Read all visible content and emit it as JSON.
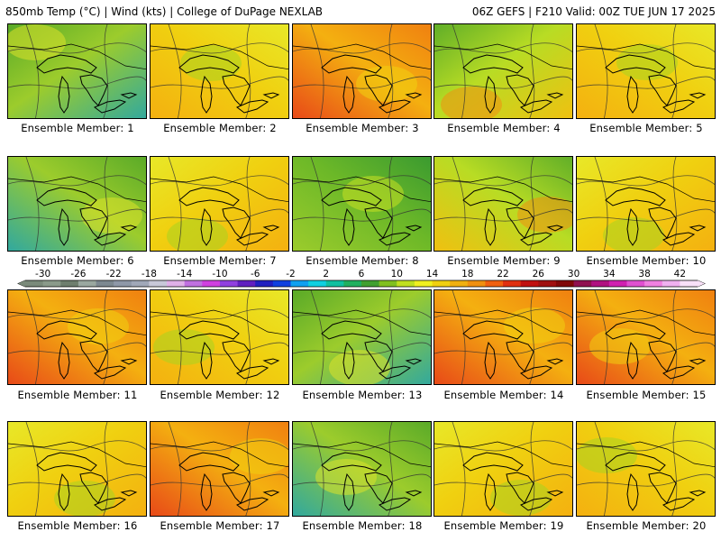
{
  "header": {
    "title_left": "850mb Temp (°C) | Wind (kts) | College of DuPage NEXLAB",
    "title_right": "06Z GEFS | F210 Valid: 00Z TUE JUN 17 2025"
  },
  "members": [
    {
      "label": "Ensemble Member: 1",
      "scheme": "cool"
    },
    {
      "label": "Ensemble Member: 2",
      "scheme": "warm"
    },
    {
      "label": "Ensemble Member: 3",
      "scheme": "hot"
    },
    {
      "label": "Ensemble Member: 4",
      "scheme": "mixed"
    },
    {
      "label": "Ensemble Member: 5",
      "scheme": "warm"
    },
    {
      "label": "Ensemble Member: 6",
      "scheme": "cool"
    },
    {
      "label": "Ensemble Member: 7",
      "scheme": "warm"
    },
    {
      "label": "Ensemble Member: 8",
      "scheme": "green"
    },
    {
      "label": "Ensemble Member: 9",
      "scheme": "mixed"
    },
    {
      "label": "Ensemble Member: 10",
      "scheme": "warm"
    },
    {
      "label": "Ensemble Member: 11",
      "scheme": "hot"
    },
    {
      "label": "Ensemble Member: 12",
      "scheme": "warm"
    },
    {
      "label": "Ensemble Member: 13",
      "scheme": "cool"
    },
    {
      "label": "Ensemble Member: 14",
      "scheme": "hot"
    },
    {
      "label": "Ensemble Member: 15",
      "scheme": "hot"
    },
    {
      "label": "Ensemble Member: 16",
      "scheme": "warm"
    },
    {
      "label": "Ensemble Member: 17",
      "scheme": "hot"
    },
    {
      "label": "Ensemble Member: 18",
      "scheme": "cool"
    },
    {
      "label": "Ensemble Member: 19",
      "scheme": "warm"
    },
    {
      "label": "Ensemble Member: 20",
      "scheme": "warm"
    }
  ],
  "colorbar": {
    "ticks": [
      "-30",
      "-26",
      "-22",
      "-18",
      "-14",
      "-10",
      "-6",
      "-2",
      "2",
      "6",
      "10",
      "14",
      "18",
      "22",
      "26",
      "30",
      "34",
      "38",
      "42"
    ],
    "colors": [
      "#7a8a7a",
      "#8a9a8a",
      "#6e7e6e",
      "#9aa8a0",
      "#7c8890",
      "#8e98a8",
      "#a0a8b8",
      "#c8c8d8",
      "#e0b0e8",
      "#c070e0",
      "#d040e0",
      "#9040e0",
      "#6020c0",
      "#2020c0",
      "#1040e0",
      "#10a0f0",
      "#10d0e0",
      "#10c0a0",
      "#20b060",
      "#40a030",
      "#80c020",
      "#c0e020",
      "#f0f020",
      "#f0d010",
      "#f0b010",
      "#f09010",
      "#f06010",
      "#e03010",
      "#c01010",
      "#a01010",
      "#800808",
      "#901050",
      "#b01080",
      "#d020b0",
      "#e050d0",
      "#f080e0",
      "#f0b0f0",
      "#f8e0f8"
    ],
    "scheme_colors": {
      "cool": [
        "#9ccc2c",
        "#5aaa28",
        "#30a8a0",
        "#dce22a"
      ],
      "warm": [
        "#f0d010",
        "#e8e828",
        "#f4b010",
        "#a8d420"
      ],
      "hot": [
        "#f4b010",
        "#f08010",
        "#e84818",
        "#f0d010"
      ],
      "mixed": [
        "#b8dc24",
        "#60ae28",
        "#f0c010",
        "#f09010"
      ],
      "green": [
        "#6cb828",
        "#3a9a30",
        "#9ccc2c",
        "#c8e022"
      ]
    }
  }
}
